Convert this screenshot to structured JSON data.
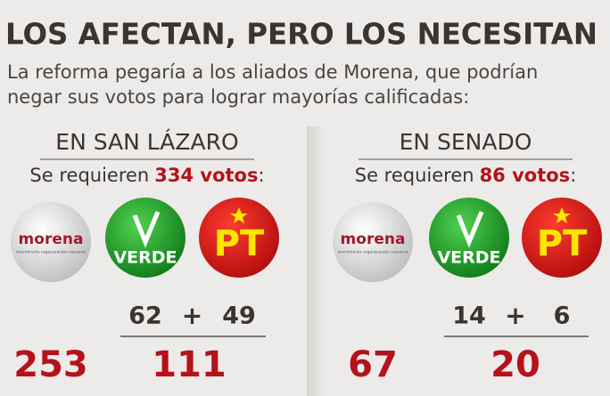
{
  "header": {
    "title": "LOS AFECTAN, PERO LOS NECESITAN",
    "subtitle_lines": [
      "La reforma pegaría a los aliados de Morena, que podrían",
      "negar sus votos para lograr mayorías calificadas:"
    ]
  },
  "panels": [
    {
      "heading": "EN SAN LÁZARO",
      "requirement_prefix": "Se requieren",
      "requirement_value": "334 votos",
      "requirement_suffix": ":",
      "logos": {
        "morena": "morena",
        "morena_tagline": "movimiento regeneración nacional",
        "verde": "VERDE",
        "pt": "PT"
      },
      "allies": [
        62,
        49
      ],
      "plus": "+",
      "morena_votes": 253,
      "allies_total": 111
    },
    {
      "heading": "EN SENADO",
      "requirement_prefix": "Se requieren",
      "requirement_value": "86 votos",
      "requirement_suffix": ":",
      "logos": {
        "morena": "morena",
        "morena_tagline": "movimiento regeneración nacional",
        "verde": "VERDE",
        "pt": "PT"
      },
      "allies": [
        14,
        6
      ],
      "plus": "+",
      "morena_votes": 67,
      "allies_total": 20
    }
  ]
}
